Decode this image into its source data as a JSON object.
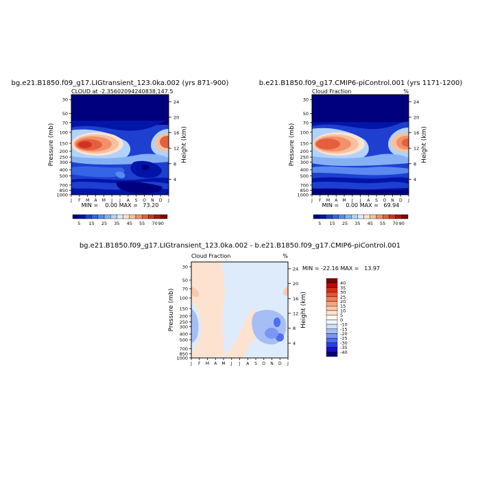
{
  "colors": {
    "ab_scale": [
      "#00007e",
      "#0014a8",
      "#1e3fd0",
      "#3565e5",
      "#5a8aef",
      "#85b0f5",
      "#b2d2fa",
      "#deebfb",
      "#fbe3d3",
      "#f9bf9f",
      "#f2906a",
      "#e55f3e",
      "#cf3320",
      "#a8160d",
      "#7a0000"
    ],
    "diff_scale": [
      "#06007a",
      "#1c10c0",
      "#2a3ee0",
      "#4c6ef0",
      "#7a98f2",
      "#a6bef6",
      "#cfe0fa",
      "#eef5fd",
      "#fff6ea",
      "#fde3cf",
      "#fbc9a8",
      "#f7a57d",
      "#f27f55",
      "#e95431",
      "#d92d18",
      "#b80e08",
      "#7e0000"
    ]
  },
  "chart_data": [
    {
      "type": "heatmap",
      "title": "bg.e21.B1850.f09_g17.LIGtransient_123.0ka.002 (yrs 871-900)",
      "subtitle": "CLOUD at -2.35602094240838,147.5",
      "subtitle_right": "",
      "ylabel": "Pressure (mb)",
      "ylabel_right": "Height (km)",
      "months": [
        "J",
        "F",
        "M",
        "A",
        "M",
        "J",
        "J",
        "A",
        "S",
        "O",
        "N",
        "D",
        "J"
      ],
      "pressure_ticks": [
        30,
        50,
        70,
        100,
        150,
        200,
        250,
        300,
        400,
        500,
        700,
        850,
        1000
      ],
      "height_ticks": [
        24,
        20,
        16,
        12,
        8,
        4
      ],
      "min": "0.00",
      "max": "73.20",
      "stats": "MIN =    0.00 MAX =   73.20",
      "colorbar_labels": [
        "5",
        "15",
        "25",
        "35",
        "45",
        "55",
        "70",
        "90"
      ]
    },
    {
      "type": "heatmap",
      "title": "b.e21.B1850.f09_g17.CMIP6-piControl.001 (yrs 1171-1200)",
      "subtitle": "Cloud Fraction",
      "subtitle_right": "%",
      "ylabel": "Pressure (mb)",
      "ylabel_right": "Height (km)",
      "months": [
        "J",
        "F",
        "M",
        "A",
        "M",
        "J",
        "J",
        "A",
        "S",
        "O",
        "N",
        "D",
        "J"
      ],
      "pressure_ticks": [
        30,
        50,
        70,
        100,
        150,
        200,
        250,
        300,
        400,
        500,
        700,
        850,
        1000
      ],
      "height_ticks": [
        24,
        20,
        16,
        12,
        8,
        4
      ],
      "min": "0.00",
      "max": "69.94",
      "stats": "MIN =    0.00 MAX =   69.94",
      "colorbar_labels": [
        "5",
        "15",
        "25",
        "35",
        "45",
        "55",
        "70",
        "90"
      ]
    },
    {
      "type": "heatmap",
      "title": "bg.e21.B1850.f09_g17.LIGtransient_123.0ka.002 - b.e21.B1850.f09_g17.CMIP6-piControl.001",
      "subtitle": "Cloud Fraction",
      "subtitle_right": "%",
      "ylabel": "Pressure (mb)",
      "ylabel_right": "Height (km)",
      "months": [
        "J",
        "F",
        "M",
        "A",
        "M",
        "J",
        "J",
        "A",
        "S",
        "O",
        "N",
        "D",
        "J"
      ],
      "pressure_ticks": [
        30,
        50,
        70,
        100,
        150,
        200,
        250,
        300,
        400,
        500,
        700,
        850,
        1000
      ],
      "height_ticks": [
        24,
        20,
        16,
        12,
        8,
        4
      ],
      "min": "-22.16",
      "max": "13.97",
      "stats": "MIN = -22.16 MAX =   13.97",
      "colorbar_labels": [
        "40",
        "35",
        "30",
        "25",
        "20",
        "15",
        "10",
        "5",
        "0",
        "-10",
        "-15",
        "-20",
        "-25",
        "-30",
        "-35",
        "-40"
      ]
    }
  ]
}
